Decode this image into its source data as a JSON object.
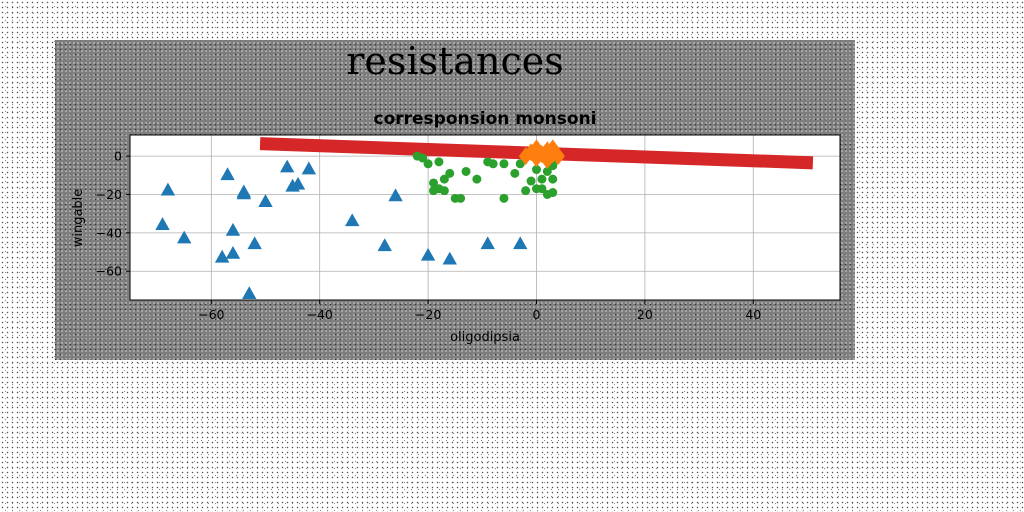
{
  "chart_data": {
    "type": "scatter",
    "suptitle": "resistances",
    "title": "corresponsion monsoni",
    "xlabel": "oligodipsia",
    "ylabel": "wingable",
    "xlim": [
      -75,
      56
    ],
    "ylim": [
      -75,
      11
    ],
    "xticks": [
      -60,
      -40,
      -20,
      0,
      20,
      40
    ],
    "yticks": [
      0,
      -20,
      -40,
      -60
    ],
    "grid": true,
    "legend": "none",
    "series": [
      {
        "marker": "triangle",
        "color": "#1f77b4",
        "points": [
          [
            -68,
            -18
          ],
          [
            -57,
            -10
          ],
          [
            -54,
            -20
          ],
          [
            -54,
            -19
          ],
          [
            -69,
            -36
          ],
          [
            -65,
            -43
          ],
          [
            -56,
            -39
          ],
          [
            -56,
            -51
          ],
          [
            -58,
            -53
          ],
          [
            -52,
            -46
          ],
          [
            -50,
            -24
          ],
          [
            -46,
            -6
          ],
          [
            -44,
            -15
          ],
          [
            -45,
            -16
          ],
          [
            -42,
            -7
          ],
          [
            -53,
            -72
          ],
          [
            -34,
            -34
          ],
          [
            -26,
            -21
          ],
          [
            -28,
            -47
          ],
          [
            -20,
            -52
          ],
          [
            -16,
            -54
          ],
          [
            -9,
            -46
          ],
          [
            -3,
            -46
          ]
        ]
      },
      {
        "marker": "circle",
        "color": "#2ca02c",
        "points": [
          [
            -22,
            0
          ],
          [
            -21,
            -1
          ],
          [
            -20,
            -4
          ],
          [
            -18,
            -3
          ],
          [
            -19,
            -14
          ],
          [
            -17,
            -12
          ],
          [
            -16,
            -9
          ],
          [
            -17,
            -18
          ],
          [
            -18,
            -17
          ],
          [
            -19,
            -18
          ],
          [
            -15,
            -22
          ],
          [
            -14,
            -22
          ],
          [
            -13,
            -8
          ],
          [
            -11,
            -12
          ],
          [
            -9,
            -3
          ],
          [
            -8,
            -4
          ],
          [
            -6,
            -4
          ],
          [
            -6,
            -22
          ],
          [
            -4,
            -9
          ],
          [
            -3,
            -4
          ],
          [
            -2,
            -18
          ],
          [
            -1,
            -13
          ],
          [
            0,
            -7
          ],
          [
            0,
            -17
          ],
          [
            1,
            -17
          ],
          [
            1,
            -12
          ],
          [
            2,
            -8
          ],
          [
            2,
            -20
          ],
          [
            3,
            -5
          ],
          [
            3,
            -3
          ],
          [
            3,
            -12
          ],
          [
            3,
            -19
          ]
        ]
      },
      {
        "marker": "diamond",
        "color": "#ff7f0e",
        "points": [
          [
            -2,
            0
          ],
          [
            -1,
            2
          ],
          [
            0,
            4
          ],
          [
            0,
            -1
          ],
          [
            1,
            1
          ],
          [
            2,
            3
          ],
          [
            2,
            -2
          ],
          [
            3,
            1
          ],
          [
            4,
            0
          ],
          [
            3,
            4
          ]
        ]
      }
    ],
    "trend_line": {
      "color": "#d62728",
      "x": [
        -51,
        51
      ],
      "y": [
        6.5,
        -3.5
      ]
    }
  }
}
